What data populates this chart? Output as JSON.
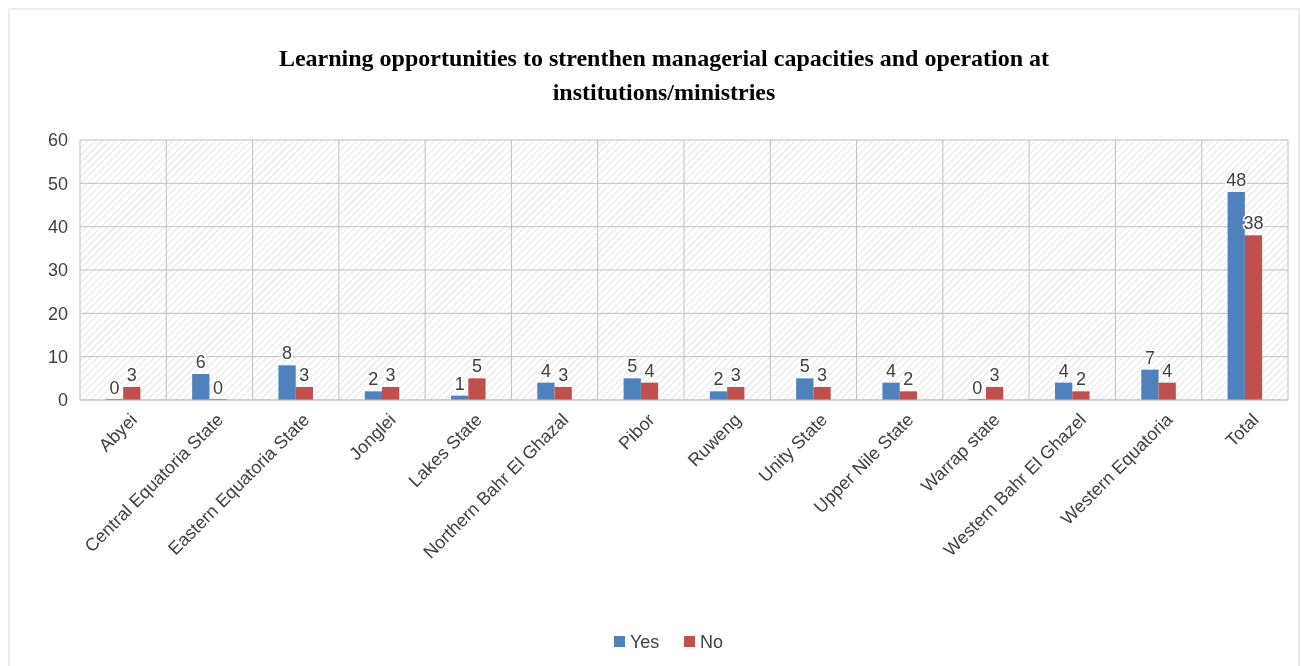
{
  "chart_data": {
    "type": "bar",
    "title": "Learning opportunities to strenthen managerial capacities and operation at institutions/ministries",
    "categories": [
      "Abyei",
      "Central Equatoria State",
      "Eastern Equatoria State",
      "Jonglei",
      "Lakes State",
      "Northern Bahr El Ghazal",
      "Pibor",
      "Ruweng",
      "Unity State",
      "Upper Nile State",
      "Warrap state",
      "Western Bahr El Ghazel",
      "Western Equatoria",
      "Total"
    ],
    "series": [
      {
        "name": "Yes",
        "color": "#4f81bd",
        "values": [
          0,
          6,
          8,
          2,
          1,
          4,
          5,
          2,
          5,
          4,
          0,
          4,
          7,
          48
        ]
      },
      {
        "name": "No",
        "color": "#c0504d",
        "values": [
          3,
          0,
          3,
          3,
          5,
          3,
          4,
          3,
          3,
          2,
          3,
          2,
          4,
          38
        ]
      }
    ],
    "ylim": [
      0,
      60
    ],
    "yticks": [
      0,
      10,
      20,
      30,
      40,
      50,
      60
    ],
    "grid": true,
    "data_labels": true,
    "legend": "bottom"
  }
}
